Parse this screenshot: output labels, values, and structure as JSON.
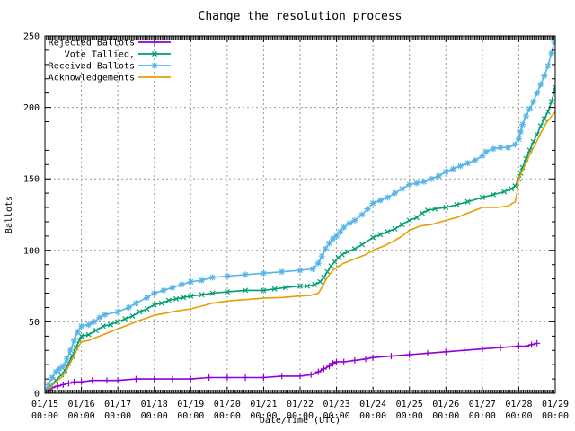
{
  "title": "Change the resolution process",
  "x_axis": {
    "label": "Date/Time (UTC)",
    "labels": [
      "01/15",
      "01/16",
      "01/17",
      "01/18",
      "01/19",
      "01/20",
      "01/21",
      "01/22",
      "01/23",
      "01/24",
      "01/25",
      "01/26",
      "01/27",
      "01/28",
      "01/29"
    ],
    "sub_label": "00:00",
    "minor_tick_interval_hours": 1
  },
  "y_axis": {
    "label": "Ballots",
    "ticks": [
      "0",
      "50",
      "100",
      "150",
      "200",
      "250"
    ],
    "minor_tick_interval": 10
  },
  "colors": {
    "background": "#ffffff",
    "axis": "#000000",
    "grid": "#9a9a9a",
    "text": "#000000"
  },
  "chart_data": {
    "type": "line",
    "title": "Change the resolution process",
    "xlabel": "Date/Time (UTC)",
    "ylabel": "Ballots",
    "ylim": [
      0,
      250
    ],
    "x_unit": "days since 01/15 00:00 UTC",
    "x_range_days": 14,
    "grid": true,
    "legend_position": "top-left-inside",
    "series": [
      {
        "name": "Rejected Ballots",
        "color": "#9400d3",
        "marker": "plus",
        "points": [
          [
            0,
            0
          ],
          [
            0.1,
            2
          ],
          [
            0.2,
            4
          ],
          [
            0.35,
            5
          ],
          [
            0.5,
            6
          ],
          [
            0.65,
            7
          ],
          [
            0.8,
            8
          ],
          [
            1,
            8
          ],
          [
            1.3,
            9
          ],
          [
            1.7,
            9
          ],
          [
            2,
            9
          ],
          [
            2.5,
            10
          ],
          [
            3,
            10
          ],
          [
            3.5,
            10
          ],
          [
            4,
            10
          ],
          [
            4.5,
            11
          ],
          [
            5,
            11
          ],
          [
            5.5,
            11
          ],
          [
            6,
            11
          ],
          [
            6.5,
            12
          ],
          [
            7,
            12
          ],
          [
            7.3,
            13
          ],
          [
            7.5,
            15
          ],
          [
            7.65,
            17
          ],
          [
            7.8,
            19
          ],
          [
            7.9,
            21
          ],
          [
            8,
            22
          ],
          [
            8.2,
            22
          ],
          [
            8.5,
            23
          ],
          [
            8.8,
            24
          ],
          [
            9,
            25
          ],
          [
            9.5,
            26
          ],
          [
            10,
            27
          ],
          [
            10.5,
            28
          ],
          [
            11,
            29
          ],
          [
            11.5,
            30
          ],
          [
            12,
            31
          ],
          [
            12.5,
            32
          ],
          [
            13,
            33
          ],
          [
            13.2,
            33
          ],
          [
            13.35,
            34
          ],
          [
            13.5,
            35
          ]
        ]
      },
      {
        "name": "Vote Tallied,",
        "color": "#009e73",
        "marker": "cross",
        "points": [
          [
            0,
            1
          ],
          [
            0.15,
            5
          ],
          [
            0.3,
            9
          ],
          [
            0.45,
            13
          ],
          [
            0.55,
            16
          ],
          [
            0.65,
            21
          ],
          [
            0.75,
            26
          ],
          [
            0.85,
            32
          ],
          [
            0.95,
            37
          ],
          [
            1,
            40
          ],
          [
            1.2,
            41
          ],
          [
            1.4,
            44
          ],
          [
            1.6,
            47
          ],
          [
            1.8,
            48
          ],
          [
            2,
            50
          ],
          [
            2.2,
            52
          ],
          [
            2.4,
            54
          ],
          [
            2.6,
            57
          ],
          [
            2.8,
            59
          ],
          [
            3,
            62
          ],
          [
            3.2,
            63
          ],
          [
            3.4,
            65
          ],
          [
            3.6,
            66
          ],
          [
            3.8,
            67
          ],
          [
            4,
            68
          ],
          [
            4.3,
            69
          ],
          [
            4.6,
            70
          ],
          [
            5,
            71
          ],
          [
            5.5,
            72
          ],
          [
            6,
            72
          ],
          [
            6.3,
            73
          ],
          [
            6.6,
            74
          ],
          [
            7,
            75
          ],
          [
            7.2,
            75
          ],
          [
            7.4,
            76
          ],
          [
            7.55,
            78
          ],
          [
            7.65,
            81
          ],
          [
            7.75,
            85
          ],
          [
            7.85,
            89
          ],
          [
            7.95,
            92
          ],
          [
            8.05,
            95
          ],
          [
            8.15,
            97
          ],
          [
            8.3,
            99
          ],
          [
            8.5,
            101
          ],
          [
            8.7,
            104
          ],
          [
            9,
            109
          ],
          [
            9.2,
            111
          ],
          [
            9.4,
            113
          ],
          [
            9.6,
            115
          ],
          [
            9.8,
            118
          ],
          [
            10,
            121
          ],
          [
            10.2,
            123
          ],
          [
            10.35,
            126
          ],
          [
            10.5,
            128
          ],
          [
            10.7,
            129
          ],
          [
            11,
            130
          ],
          [
            11.3,
            132
          ],
          [
            11.6,
            134
          ],
          [
            12,
            137
          ],
          [
            12.3,
            139
          ],
          [
            12.6,
            141
          ],
          [
            12.8,
            143
          ],
          [
            12.9,
            145
          ],
          [
            13,
            150
          ],
          [
            13.05,
            154
          ],
          [
            13.1,
            158
          ],
          [
            13.2,
            164
          ],
          [
            13.3,
            170
          ],
          [
            13.4,
            176
          ],
          [
            13.5,
            181
          ],
          [
            13.6,
            187
          ],
          [
            13.7,
            192
          ],
          [
            13.8,
            197
          ],
          [
            13.9,
            204
          ],
          [
            14,
            214
          ]
        ]
      },
      {
        "name": "Received Ballots",
        "color": "#56b4e9",
        "marker": "star",
        "points": [
          [
            0,
            2
          ],
          [
            0.1,
            6
          ],
          [
            0.2,
            11
          ],
          [
            0.3,
            15
          ],
          [
            0.4,
            17
          ],
          [
            0.5,
            19
          ],
          [
            0.6,
            24
          ],
          [
            0.7,
            30
          ],
          [
            0.8,
            37
          ],
          [
            0.9,
            43
          ],
          [
            1,
            47
          ],
          [
            1.2,
            48
          ],
          [
            1.35,
            50
          ],
          [
            1.5,
            53
          ],
          [
            1.65,
            55
          ],
          [
            2,
            57
          ],
          [
            2.3,
            60
          ],
          [
            2.5,
            63
          ],
          [
            2.8,
            67
          ],
          [
            3,
            70
          ],
          [
            3.25,
            72
          ],
          [
            3.5,
            74
          ],
          [
            3.75,
            76
          ],
          [
            4,
            78
          ],
          [
            4.3,
            79
          ],
          [
            4.6,
            81
          ],
          [
            5,
            82
          ],
          [
            5.5,
            83
          ],
          [
            6,
            84
          ],
          [
            6.5,
            85
          ],
          [
            7,
            86
          ],
          [
            7.35,
            87
          ],
          [
            7.5,
            91
          ],
          [
            7.6,
            96
          ],
          [
            7.7,
            101
          ],
          [
            7.8,
            105
          ],
          [
            7.9,
            108
          ],
          [
            8,
            110
          ],
          [
            8.1,
            113
          ],
          [
            8.2,
            116
          ],
          [
            8.35,
            119
          ],
          [
            8.5,
            121
          ],
          [
            8.7,
            125
          ],
          [
            8.85,
            129
          ],
          [
            9,
            133
          ],
          [
            9.2,
            135
          ],
          [
            9.4,
            137
          ],
          [
            9.6,
            140
          ],
          [
            9.8,
            143
          ],
          [
            10,
            146
          ],
          [
            10.2,
            147
          ],
          [
            10.4,
            148
          ],
          [
            10.6,
            150
          ],
          [
            10.8,
            152
          ],
          [
            11,
            155
          ],
          [
            11.2,
            157
          ],
          [
            11.4,
            159
          ],
          [
            11.6,
            161
          ],
          [
            11.8,
            163
          ],
          [
            12,
            166
          ],
          [
            12.1,
            169
          ],
          [
            12.3,
            171
          ],
          [
            12.5,
            172
          ],
          [
            12.7,
            172
          ],
          [
            12.9,
            174
          ],
          [
            13,
            178
          ],
          [
            13.05,
            183
          ],
          [
            13.1,
            188
          ],
          [
            13.2,
            194
          ],
          [
            13.3,
            199
          ],
          [
            13.4,
            204
          ],
          [
            13.5,
            210
          ],
          [
            13.6,
            216
          ],
          [
            13.7,
            222
          ],
          [
            13.8,
            229
          ],
          [
            13.9,
            238
          ],
          [
            13.97,
            246
          ],
          [
            14,
            250
          ]
        ]
      },
      {
        "name": "Acknowledgements",
        "color": "#e69f00",
        "marker": "none",
        "points": [
          [
            0,
            0
          ],
          [
            0.15,
            4
          ],
          [
            0.3,
            8
          ],
          [
            0.45,
            11
          ],
          [
            0.55,
            14
          ],
          [
            0.65,
            19
          ],
          [
            0.75,
            24
          ],
          [
            0.85,
            29
          ],
          [
            0.95,
            34
          ],
          [
            1,
            36
          ],
          [
            1.2,
            37
          ],
          [
            1.4,
            39
          ],
          [
            1.6,
            41
          ],
          [
            1.8,
            43
          ],
          [
            2,
            45
          ],
          [
            2.3,
            48
          ],
          [
            2.6,
            51
          ],
          [
            3,
            54.5
          ],
          [
            3.3,
            56
          ],
          [
            3.6,
            57.5
          ],
          [
            4,
            59
          ],
          [
            4.3,
            61
          ],
          [
            4.6,
            63
          ],
          [
            5,
            64.5
          ],
          [
            5.5,
            65.5
          ],
          [
            6,
            66.5
          ],
          [
            6.5,
            67
          ],
          [
            7,
            68
          ],
          [
            7.3,
            68.5
          ],
          [
            7.5,
            70
          ],
          [
            7.6,
            74
          ],
          [
            7.7,
            79
          ],
          [
            7.8,
            83
          ],
          [
            7.9,
            86
          ],
          [
            8,
            88
          ],
          [
            8.2,
            91
          ],
          [
            8.4,
            93
          ],
          [
            8.6,
            95
          ],
          [
            8.8,
            97
          ],
          [
            9,
            100
          ],
          [
            9.3,
            103
          ],
          [
            9.6,
            107
          ],
          [
            9.8,
            110
          ],
          [
            10,
            114
          ],
          [
            10.3,
            117
          ],
          [
            10.6,
            118
          ],
          [
            11,
            121
          ],
          [
            11.3,
            123
          ],
          [
            11.6,
            126
          ],
          [
            12,
            130
          ],
          [
            12.4,
            130
          ],
          [
            12.7,
            131
          ],
          [
            12.9,
            134
          ],
          [
            12.95,
            140
          ],
          [
            13,
            150
          ],
          [
            13.1,
            156
          ],
          [
            13.2,
            161
          ],
          [
            13.3,
            167
          ],
          [
            13.45,
            174
          ],
          [
            13.6,
            182
          ],
          [
            13.75,
            189
          ],
          [
            13.9,
            194
          ],
          [
            14,
            197
          ]
        ]
      }
    ]
  }
}
